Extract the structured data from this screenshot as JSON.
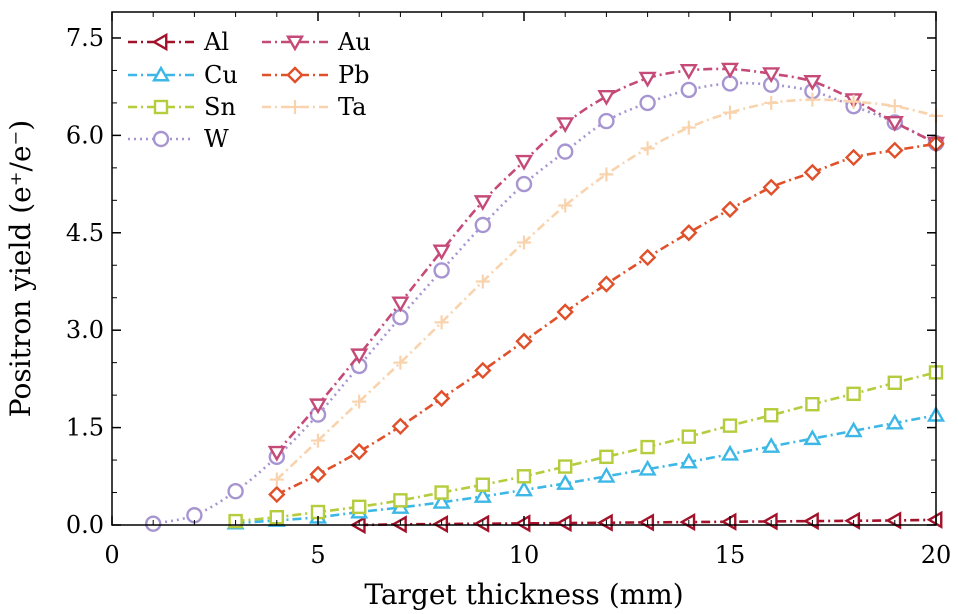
{
  "chart_data": {
    "type": "line",
    "xlabel": "Target thickness (mm)",
    "ylabel": "Positron yield (e⁺/e⁻)",
    "xlim": [
      0,
      20
    ],
    "ylim": [
      0,
      7.9
    ],
    "xticks": [
      0,
      5,
      10,
      15,
      20
    ],
    "yticks": [
      0.0,
      1.5,
      3.0,
      4.5,
      6.0,
      7.5
    ],
    "xtick_labels": [
      "0",
      "5",
      "10",
      "15",
      "20"
    ],
    "ytick_labels": [
      "0.0",
      "1.5",
      "3.0",
      "4.5",
      "6.0",
      "7.5"
    ],
    "grid": false,
    "legend_position": "top-left",
    "series": [
      {
        "name": "Al",
        "color": "#a3122b",
        "marker": "triangle-left",
        "dash": "dashdot",
        "x": [
          6,
          7,
          8,
          9,
          10,
          11,
          12,
          13,
          14,
          15,
          16,
          17,
          18,
          19,
          20
        ],
        "values": [
          0.0,
          0.01,
          0.015,
          0.02,
          0.025,
          0.03,
          0.035,
          0.04,
          0.045,
          0.05,
          0.055,
          0.06,
          0.065,
          0.07,
          0.08
        ]
      },
      {
        "name": "Cu",
        "color": "#3db8e6",
        "marker": "triangle-up",
        "dash": "dashdot",
        "x": [
          3,
          4,
          5,
          6,
          7,
          8,
          9,
          10,
          11,
          12,
          13,
          14,
          15,
          16,
          17,
          18,
          19,
          20
        ],
        "values": [
          0.03,
          0.07,
          0.12,
          0.2,
          0.27,
          0.35,
          0.44,
          0.54,
          0.64,
          0.75,
          0.86,
          0.97,
          1.09,
          1.21,
          1.33,
          1.45,
          1.57,
          1.69
        ]
      },
      {
        "name": "Sn",
        "color": "#b5cc3c",
        "marker": "square",
        "dash": "dashdot",
        "x": [
          3,
          4,
          5,
          6,
          7,
          8,
          9,
          10,
          11,
          12,
          13,
          14,
          15,
          16,
          17,
          18,
          19,
          20
        ],
        "values": [
          0.06,
          0.12,
          0.2,
          0.28,
          0.38,
          0.5,
          0.62,
          0.75,
          0.9,
          1.05,
          1.2,
          1.36,
          1.53,
          1.69,
          1.86,
          2.02,
          2.19,
          2.35
        ]
      },
      {
        "name": "W",
        "color": "#a795d1",
        "marker": "circle",
        "dash": "dotted",
        "x": [
          1,
          2,
          3,
          4,
          5,
          6,
          7,
          8,
          9,
          10,
          11,
          12,
          13,
          14,
          15,
          16,
          17,
          18,
          19,
          20
        ],
        "values": [
          0.02,
          0.15,
          0.52,
          1.05,
          1.7,
          2.45,
          3.2,
          3.92,
          4.62,
          5.25,
          5.75,
          6.22,
          6.5,
          6.7,
          6.8,
          6.78,
          6.68,
          6.45,
          6.2,
          5.88
        ]
      },
      {
        "name": "Au",
        "color": "#c64a78",
        "marker": "triangle-down",
        "dash": "dashdot",
        "x": [
          4,
          5,
          6,
          7,
          8,
          9,
          10,
          11,
          12,
          13,
          14,
          15,
          16,
          17,
          18,
          19,
          20
        ],
        "values": [
          1.12,
          1.85,
          2.62,
          3.42,
          4.22,
          4.98,
          5.6,
          6.18,
          6.6,
          6.88,
          7.0,
          7.02,
          6.95,
          6.83,
          6.55,
          6.2,
          5.88
        ]
      },
      {
        "name": "Pb",
        "color": "#e0502a",
        "marker": "diamond",
        "dash": "dashdot",
        "x": [
          4,
          5,
          6,
          7,
          8,
          9,
          10,
          11,
          12,
          13,
          14,
          15,
          16,
          17,
          18,
          19,
          20
        ],
        "values": [
          0.47,
          0.78,
          1.13,
          1.52,
          1.95,
          2.38,
          2.83,
          3.28,
          3.71,
          4.12,
          4.5,
          4.86,
          5.2,
          5.43,
          5.66,
          5.77,
          5.87
        ]
      },
      {
        "name": "Ta",
        "color": "#f9d3ad",
        "marker": "plus",
        "dash": "dashdot",
        "x": [
          4,
          5,
          6,
          7,
          8,
          9,
          10,
          11,
          12,
          13,
          14,
          15,
          16,
          17,
          18,
          19,
          20
        ],
        "values": [
          0.7,
          1.3,
          1.9,
          2.5,
          3.12,
          3.75,
          4.35,
          4.92,
          5.4,
          5.8,
          6.12,
          6.35,
          6.5,
          6.55,
          6.52,
          6.45,
          6.3
        ]
      }
    ],
    "legend_order": [
      "Al",
      "Au",
      "Cu",
      "Pb",
      "Sn",
      "Ta",
      "W"
    ]
  }
}
